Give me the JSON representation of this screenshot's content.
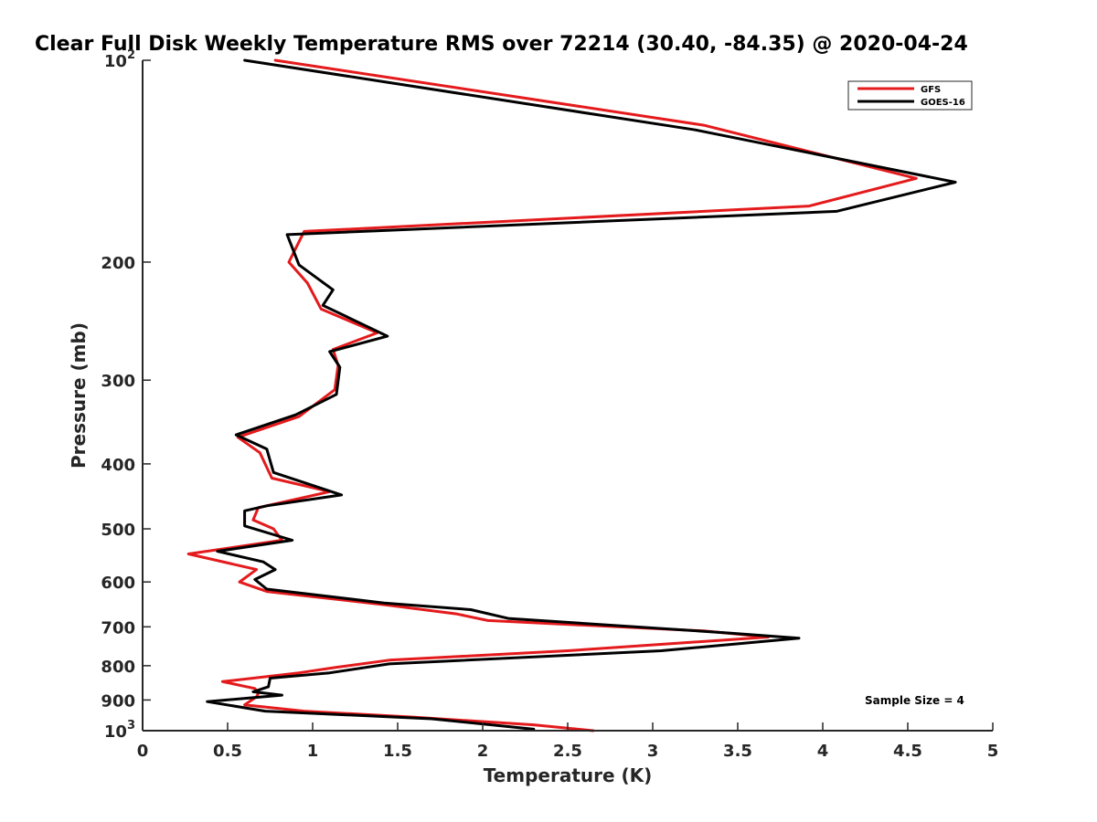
{
  "chart_data": {
    "type": "line",
    "title": "Clear Full Disk Weekly Temperature RMS over 72214 (30.40, -84.35) @ 2020-04-24",
    "xlabel": "Temperature (K)",
    "ylabel": "Pressure (mb)",
    "xlim": [
      0,
      5
    ],
    "ylim": [
      1000,
      100
    ],
    "y_scale": "log",
    "y_reversed": true,
    "x_ticks": [
      0,
      0.5,
      1,
      1.5,
      2,
      2.5,
      3,
      3.5,
      4,
      4.5,
      5
    ],
    "x_tick_labels": [
      "0",
      "0.5",
      "1",
      "1.5",
      "2",
      "2.5",
      "3",
      "3.5",
      "4",
      "4.5",
      "5"
    ],
    "y_ticks": [
      100,
      200,
      300,
      400,
      500,
      600,
      700,
      800,
      900,
      1000
    ],
    "y_tick_labels": [
      {
        "base": "10",
        "exp": "2"
      },
      {
        "base": "200",
        "exp": ""
      },
      {
        "base": "300",
        "exp": ""
      },
      {
        "base": "400",
        "exp": ""
      },
      {
        "base": "500",
        "exp": ""
      },
      {
        "base": "600",
        "exp": ""
      },
      {
        "base": "700",
        "exp": ""
      },
      {
        "base": "800",
        "exp": ""
      },
      {
        "base": "900",
        "exp": ""
      },
      {
        "base": "10",
        "exp": "3"
      }
    ],
    "grid": false,
    "legend_position": "top-right",
    "series": [
      {
        "name": "GFS",
        "color": "#e41a1c",
        "points": [
          [
            0.78,
            100
          ],
          [
            3.3,
            125
          ],
          [
            4.55,
            150
          ],
          [
            3.92,
            165
          ],
          [
            0.95,
            180
          ],
          [
            0.86,
            200
          ],
          [
            0.97,
            215
          ],
          [
            1.05,
            235
          ],
          [
            1.38,
            255
          ],
          [
            1.12,
            270
          ],
          [
            1.15,
            285
          ],
          [
            1.13,
            310
          ],
          [
            0.92,
            340
          ],
          [
            0.56,
            365
          ],
          [
            0.69,
            385
          ],
          [
            0.76,
            420
          ],
          [
            1.1,
            440
          ],
          [
            0.68,
            465
          ],
          [
            0.65,
            485
          ],
          [
            0.77,
            500
          ],
          [
            0.82,
            520
          ],
          [
            0.27,
            545
          ],
          [
            0.67,
            575
          ],
          [
            0.57,
            600
          ],
          [
            0.73,
            620
          ],
          [
            1.45,
            650
          ],
          [
            1.85,
            670
          ],
          [
            2.03,
            685
          ],
          [
            3.3,
            710
          ],
          [
            3.68,
            725
          ],
          [
            2.5,
            760
          ],
          [
            1.45,
            785
          ],
          [
            1.13,
            805
          ],
          [
            0.92,
            820
          ],
          [
            0.47,
            845
          ],
          [
            0.66,
            865
          ],
          [
            0.68,
            880
          ],
          [
            0.67,
            890
          ],
          [
            0.6,
            915
          ],
          [
            0.95,
            935
          ],
          [
            1.6,
            955
          ],
          [
            2.3,
            980
          ],
          [
            2.65,
            1000
          ]
        ]
      },
      {
        "name": "GOES-16",
        "color": "#000000",
        "points": [
          [
            0.6,
            100
          ],
          [
            3.25,
            127
          ],
          [
            4.78,
            152
          ],
          [
            4.08,
            168
          ],
          [
            0.85,
            182
          ],
          [
            0.92,
            202
          ],
          [
            1.12,
            220
          ],
          [
            1.06,
            232
          ],
          [
            1.44,
            258
          ],
          [
            1.1,
            272
          ],
          [
            1.16,
            287
          ],
          [
            1.14,
            315
          ],
          [
            0.9,
            338
          ],
          [
            0.55,
            362
          ],
          [
            0.73,
            380
          ],
          [
            0.77,
            412
          ],
          [
            1.17,
            445
          ],
          [
            0.73,
            462
          ],
          [
            0.6,
            470
          ],
          [
            0.6,
            495
          ],
          [
            0.88,
            520
          ],
          [
            0.44,
            540
          ],
          [
            0.71,
            560
          ],
          [
            0.78,
            575
          ],
          [
            0.66,
            595
          ],
          [
            0.73,
            615
          ],
          [
            1.42,
            645
          ],
          [
            1.93,
            660
          ],
          [
            2.15,
            680
          ],
          [
            3.45,
            715
          ],
          [
            3.86,
            728
          ],
          [
            3.05,
            760
          ],
          [
            1.45,
            795
          ],
          [
            1.1,
            820
          ],
          [
            0.75,
            835
          ],
          [
            0.74,
            860
          ],
          [
            0.65,
            875
          ],
          [
            0.82,
            885
          ],
          [
            0.38,
            905
          ],
          [
            0.72,
            935
          ],
          [
            1.7,
            960
          ],
          [
            2.3,
            995
          ]
        ]
      }
    ],
    "annotations": [
      {
        "text": "Sample Size = 4"
      }
    ]
  }
}
